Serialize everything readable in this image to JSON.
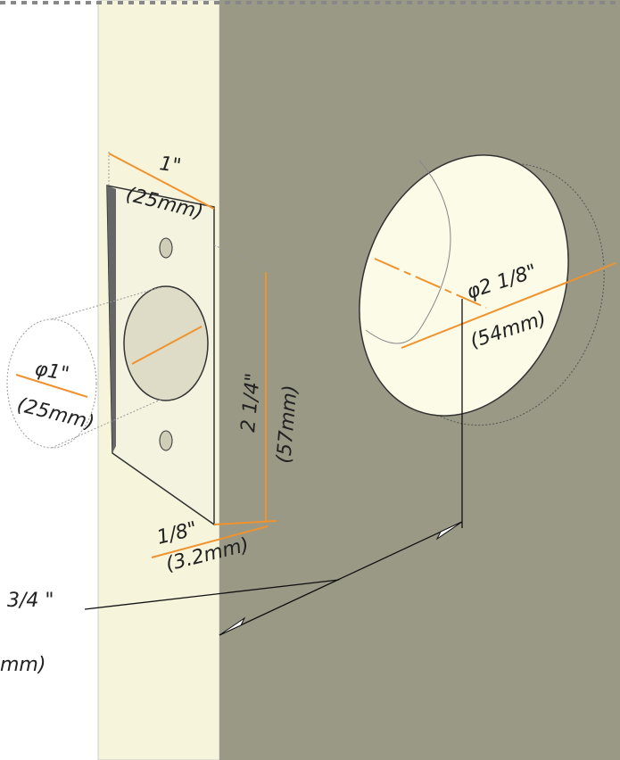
{
  "dimensions": {
    "faceplate_width": {
      "inch": "1\"",
      "mm": "(25mm)"
    },
    "faceplate_height": {
      "inch": "2 1/4\"",
      "mm": "(57mm)"
    },
    "edge_bore": {
      "inch": "φ1\"",
      "mm": "(25mm)"
    },
    "cross_bore": {
      "inch": "φ2 1/8\"",
      "mm": "(54mm)"
    },
    "mortise_depth": {
      "inch": "1/8\"",
      "mm": "(3.2mm)"
    },
    "backset": {
      "inch": "3/4 \"",
      "mm": "mm)"
    }
  }
}
